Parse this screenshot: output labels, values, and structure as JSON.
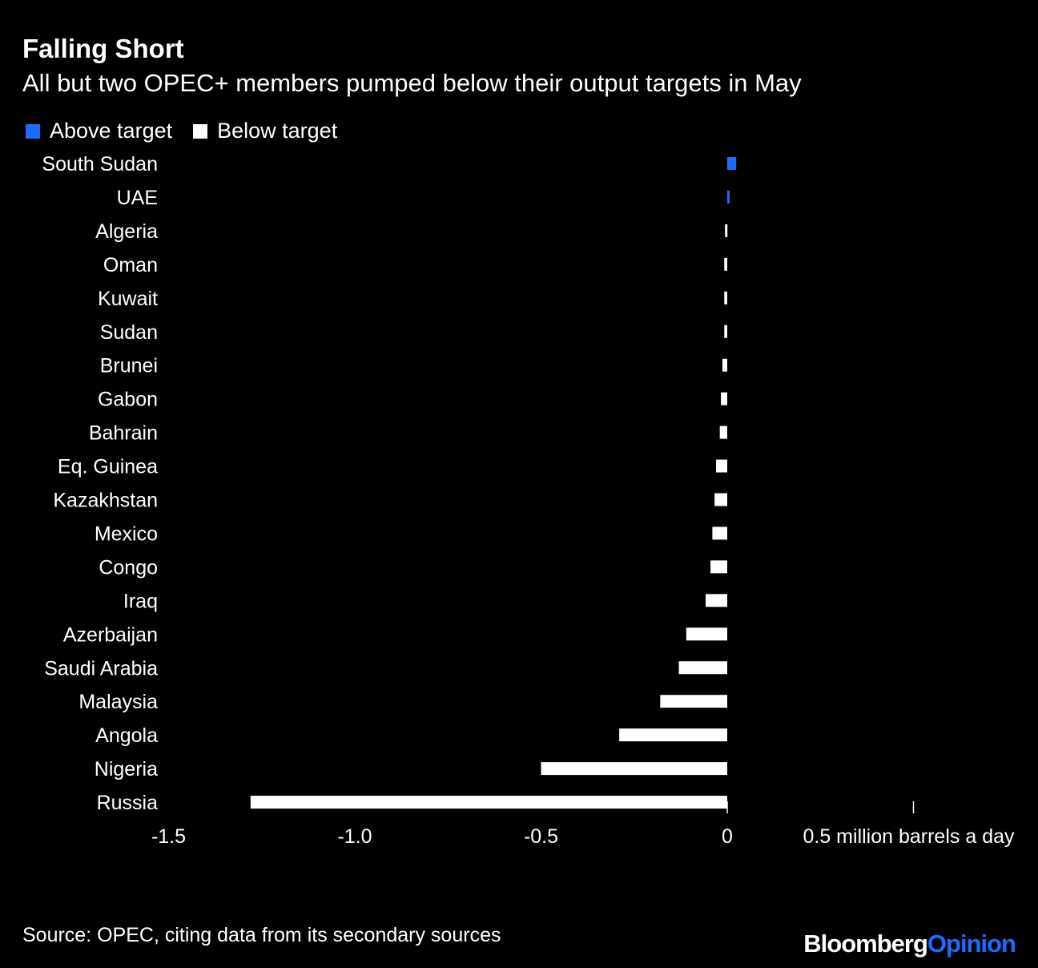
{
  "title": "Falling Short",
  "subtitle": "All but two OPEC+ members pumped below their output targets in May",
  "source": "Source: OPEC, citing data from its secondary sources",
  "logo": {
    "part1": "Bloomberg",
    "part2": "Opinion"
  },
  "colors": {
    "above": "#1a6dff",
    "below": "#ffffff",
    "background": "#000000"
  },
  "chart_data": {
    "type": "bar",
    "orientation": "horizontal",
    "title": "Falling Short",
    "subtitle": "All but two OPEC+ members pumped below their output targets in May",
    "legend": [
      {
        "name": "Above target",
        "color": "#1a6dff"
      },
      {
        "name": "Below target",
        "color": "#ffffff"
      }
    ],
    "legend_placement": "top-left",
    "categories": [
      "South Sudan",
      "UAE",
      "Algeria",
      "Oman",
      "Kuwait",
      "Sudan",
      "Brunei",
      "Gabon",
      "Bahrain",
      "Eq. Guinea",
      "Kazakhstan",
      "Mexico",
      "Congo",
      "Iraq",
      "Azerbaijan",
      "Saudi Arabia",
      "Malaysia",
      "Angola",
      "Nigeria",
      "Russia"
    ],
    "values": [
      0.024,
      0.006,
      -0.006,
      -0.008,
      -0.008,
      -0.008,
      -0.013,
      -0.017,
      -0.02,
      -0.03,
      -0.034,
      -0.04,
      -0.045,
      -0.058,
      -0.11,
      -0.13,
      -0.18,
      -0.29,
      -0.5,
      -1.28
    ],
    "xlim": [
      -1.5,
      0.5
    ],
    "xticks": [
      -1.5,
      -1.0,
      -0.5,
      0,
      0.5
    ],
    "xtick_labels": [
      "-1.5",
      "-1.0",
      "-0.5",
      "0",
      "0.5 million barrels a day"
    ],
    "grid": false
  }
}
